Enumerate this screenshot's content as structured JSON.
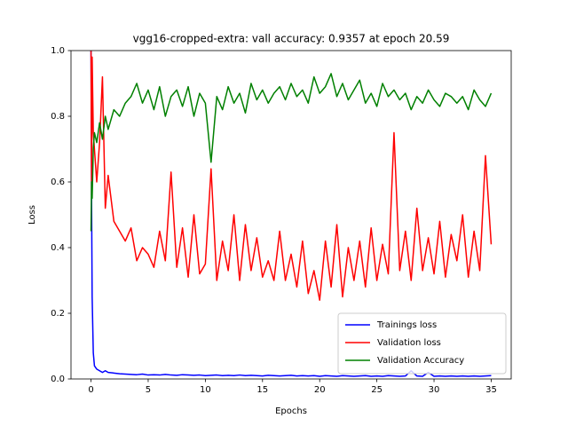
{
  "chart_data": {
    "type": "line",
    "title": "vgg16-cropped-extra: vall accuracy: 0.9357 at epoch 20.59",
    "x_label": "Epochs",
    "y_label": "Loss",
    "x": [
      0,
      0.05,
      0.1,
      0.2,
      0.3,
      0.5,
      0.75,
      1,
      1.25,
      1.5,
      2,
      2.5,
      3,
      3.5,
      4,
      4.5,
      5,
      5.5,
      6,
      6.5,
      7,
      7.5,
      8,
      8.5,
      9,
      9.5,
      10,
      10.5,
      11,
      11.5,
      12,
      12.5,
      13,
      13.5,
      14,
      14.5,
      15,
      15.5,
      16,
      16.5,
      17,
      17.5,
      18,
      18.5,
      19,
      19.5,
      20,
      20.5,
      21,
      21.5,
      22,
      22.5,
      23,
      23.5,
      24,
      24.5,
      25,
      25.5,
      26,
      26.5,
      27,
      27.5,
      28,
      28.5,
      29,
      29.5,
      30,
      30.5,
      31,
      31.5,
      32,
      32.5,
      33,
      33.5,
      34,
      34.5,
      35
    ],
    "series": [
      {
        "name": "Trainings loss",
        "color": "#0000ff",
        "values": [
          1.0,
          0.55,
          0.25,
          0.08,
          0.04,
          0.03,
          0.025,
          0.02,
          0.025,
          0.02,
          0.018,
          0.016,
          0.015,
          0.014,
          0.013,
          0.015,
          0.012,
          0.013,
          0.012,
          0.014,
          0.012,
          0.011,
          0.013,
          0.012,
          0.011,
          0.012,
          0.01,
          0.011,
          0.012,
          0.01,
          0.011,
          0.01,
          0.012,
          0.01,
          0.011,
          0.01,
          0.009,
          0.011,
          0.01,
          0.009,
          0.01,
          0.011,
          0.009,
          0.01,
          0.009,
          0.01,
          0.008,
          0.01,
          0.009,
          0.008,
          0.01,
          0.009,
          0.008,
          0.009,
          0.01,
          0.008,
          0.009,
          0.008,
          0.01,
          0.009,
          0.008,
          0.009,
          0.025,
          0.009,
          0.008,
          0.02,
          0.008,
          0.009,
          0.008,
          0.009,
          0.008,
          0.009,
          0.008,
          0.009,
          0.008,
          0.009,
          0.01
        ]
      },
      {
        "name": "Validation loss",
        "color": "#ff0000",
        "values": [
          1.0,
          0.56,
          0.98,
          0.75,
          0.7,
          0.6,
          0.72,
          0.92,
          0.52,
          0.62,
          0.48,
          0.45,
          0.42,
          0.46,
          0.36,
          0.4,
          0.38,
          0.34,
          0.45,
          0.36,
          0.63,
          0.34,
          0.46,
          0.31,
          0.5,
          0.32,
          0.35,
          0.64,
          0.3,
          0.42,
          0.33,
          0.5,
          0.3,
          0.47,
          0.33,
          0.43,
          0.31,
          0.36,
          0.3,
          0.45,
          0.3,
          0.38,
          0.28,
          0.42,
          0.26,
          0.33,
          0.24,
          0.42,
          0.28,
          0.47,
          0.25,
          0.4,
          0.3,
          0.42,
          0.28,
          0.46,
          0.3,
          0.41,
          0.32,
          0.75,
          0.33,
          0.45,
          0.3,
          0.52,
          0.33,
          0.43,
          0.32,
          0.48,
          0.31,
          0.44,
          0.36,
          0.5,
          0.31,
          0.45,
          0.33,
          0.68,
          0.41
        ]
      },
      {
        "name": "Validation Accuracy",
        "color": "#008000",
        "values": [
          0.45,
          0.6,
          0.55,
          0.7,
          0.75,
          0.72,
          0.78,
          0.73,
          0.8,
          0.76,
          0.82,
          0.8,
          0.84,
          0.86,
          0.9,
          0.84,
          0.88,
          0.82,
          0.89,
          0.8,
          0.86,
          0.88,
          0.83,
          0.89,
          0.8,
          0.87,
          0.84,
          0.66,
          0.86,
          0.82,
          0.89,
          0.84,
          0.87,
          0.81,
          0.9,
          0.85,
          0.88,
          0.84,
          0.87,
          0.89,
          0.85,
          0.9,
          0.86,
          0.88,
          0.84,
          0.92,
          0.87,
          0.89,
          0.93,
          0.86,
          0.9,
          0.85,
          0.88,
          0.91,
          0.84,
          0.87,
          0.83,
          0.9,
          0.86,
          0.88,
          0.85,
          0.87,
          0.82,
          0.86,
          0.84,
          0.88,
          0.85,
          0.83,
          0.87,
          0.86,
          0.84,
          0.86,
          0.82,
          0.88,
          0.85,
          0.83,
          0.87
        ]
      }
    ],
    "xlim": [
      -1.75,
      36.75
    ],
    "xticks": [
      0,
      5,
      10,
      15,
      20,
      25,
      30,
      35
    ],
    "ylim": [
      0,
      1
    ],
    "yticks": [
      {
        "value": 0,
        "label": "0.0"
      },
      0.2,
      0.4,
      0.6,
      0.8,
      {
        "value": 1,
        "label": "1.0"
      }
    ],
    "grid": false,
    "legend": "lower right"
  }
}
